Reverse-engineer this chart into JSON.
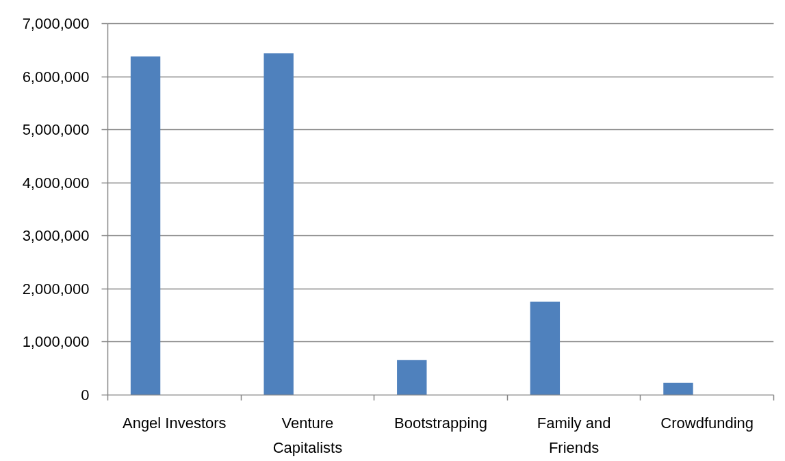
{
  "chart_data": {
    "type": "bar",
    "categories": [
      "Angel Investors",
      "Venture Capitalists",
      "Bootstrapping",
      "Family and Friends",
      "Crowdfunding"
    ],
    "values": [
      6380000,
      6440000,
      660000,
      1760000,
      230000
    ],
    "color": "#4f81bd",
    "ylim": [
      0,
      7000000
    ],
    "yticks": [
      0,
      {
        "value": 1000000,
        "label": "1,000,000"
      },
      {
        "value": 2000000,
        "label": "2,000,000"
      },
      {
        "value": 3000000,
        "label": "3,000,000"
      },
      {
        "value": 4000000,
        "label": "4,000,000"
      },
      {
        "value": 5000000,
        "label": "5,000,000"
      },
      {
        "value": 6000000,
        "label": "6,000,000"
      },
      {
        "value": 7000000,
        "label": "7,000,000"
      }
    ],
    "grid": "y"
  }
}
